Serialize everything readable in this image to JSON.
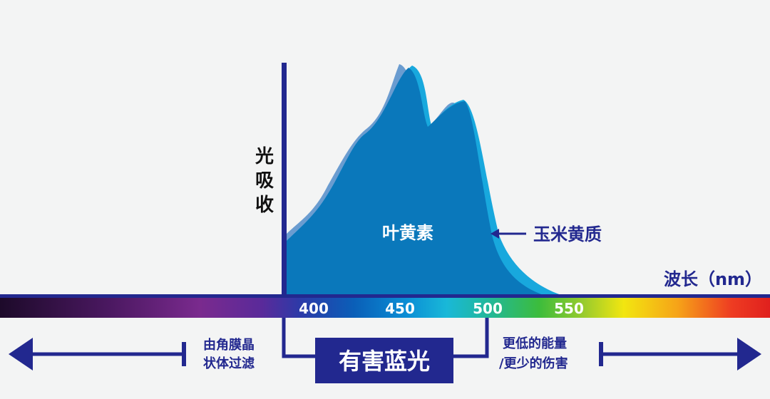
{
  "axis": {
    "y_label": [
      "光",
      "吸",
      "收"
    ],
    "x_label": "波长（nm）",
    "ticks": [
      "400",
      "450",
      "500",
      "550"
    ]
  },
  "curves": {
    "lutein_label": "叶黄素",
    "zeaxanthin_label": "玉米黄质"
  },
  "regions": {
    "left_text": [
      "由角膜晶",
      "状体过滤"
    ],
    "center_label": "有害蓝光",
    "right_text": [
      "更低的能量",
      "/更少的伤害"
    ]
  },
  "colors": {
    "navy": "#22288f",
    "lutein": "#0a78bb",
    "zeaxanthin": "#18a8dd",
    "shadow": "#6a9cd0",
    "background": "#f3f4f4"
  }
}
